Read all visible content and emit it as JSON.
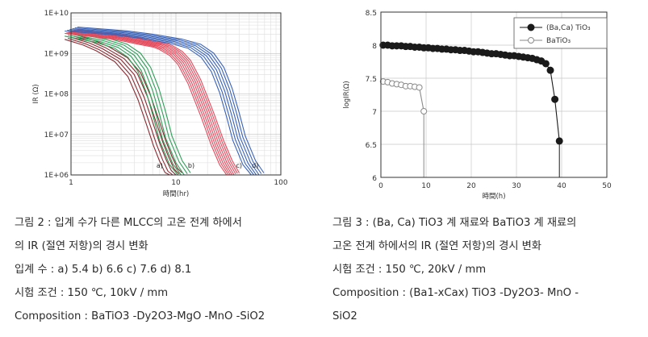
{
  "chart_data": [
    {
      "type": "line",
      "title": "",
      "xlabel": "時間(hr)",
      "ylabel": "IR (Ω)",
      "xscale": "log",
      "yscale": "log",
      "xlim": [
        1,
        100
      ],
      "ylim": [
        1000000,
        10000000000
      ],
      "xticks": [
        1,
        10,
        100
      ],
      "xtick_labels": [
        "1",
        "10",
        "100"
      ],
      "yticks": [
        1000000,
        10000000,
        100000000,
        1000000000,
        10000000000
      ],
      "ytick_labels": [
        "1E+06",
        "1E+07",
        "1E+08",
        "1E+09",
        "1E+10"
      ],
      "grid": true,
      "series_labels": [
        "a)",
        "b)",
        "c)",
        "d)"
      ],
      "series": [
        {
          "name": "a) 5.4",
          "color": "#8a2b32",
          "count": 5,
          "x": [
            1,
            1.5,
            2,
            3,
            4,
            5,
            6,
            7,
            8,
            9,
            10
          ],
          "y": [
            2500000000,
            1800000000,
            1300000000,
            700000000,
            300000000,
            80000000,
            20000000,
            6000000,
            2500000,
            1300000,
            1000000
          ]
        },
        {
          "name": "b) 6.6",
          "color": "#2e9e58",
          "count": 5,
          "x": [
            1,
            2,
            3,
            4,
            5,
            6,
            7,
            8,
            10,
            12
          ],
          "y": [
            3000000000,
            2100000000,
            1500000000,
            900000000,
            400000000,
            120000000,
            30000000,
            8000000,
            2000000,
            1000000
          ]
        },
        {
          "name": "c) 7.6",
          "color": "#e34a5c",
          "count": 8,
          "x": [
            1,
            3,
            5,
            7,
            8,
            10,
            12,
            15,
            20,
            25,
            30,
            35
          ],
          "y": [
            3500000000,
            2500000000,
            1900000000,
            1600000000,
            1400000000,
            1000000000,
            600000000,
            200000000,
            30000000,
            6000000,
            2000000,
            1000000
          ]
        },
        {
          "name": "d) 8.1",
          "color": "#3a63b8",
          "count": 6,
          "x": [
            1,
            3,
            5,
            10,
            15,
            20,
            25,
            30,
            35,
            40,
            50,
            60
          ],
          "y": [
            4000000000,
            3200000000,
            2700000000,
            2000000000,
            1500000000,
            900000000,
            400000000,
            120000000,
            30000000,
            8000000,
            2000000,
            1000000
          ]
        }
      ]
    },
    {
      "type": "line",
      "title": "",
      "xlabel": "時間(h)",
      "ylabel": "logIR(Ω)",
      "xlim": [
        0,
        50
      ],
      "ylim": [
        6,
        8.5
      ],
      "xticks": [
        0,
        10,
        20,
        30,
        40,
        50
      ],
      "yticks": [
        6,
        6.5,
        7,
        7.5,
        8,
        8.5
      ],
      "xtick_labels": [
        "0",
        "10",
        "20",
        "30",
        "40",
        "50"
      ],
      "ytick_labels": [
        "6",
        "6.5",
        "7",
        "7.5",
        "8",
        "8.5"
      ],
      "grid": true,
      "legend": "top-right",
      "series": [
        {
          "name": "(Ba,Ca) TiO₃",
          "marker": "filled-circle",
          "color": "#1a1a1a",
          "x": [
            0.5,
            1.5,
            2.5,
            3.5,
            4.5,
            5.5,
            6.5,
            7.5,
            8.5,
            9.5,
            10.5,
            11.5,
            12.5,
            13.5,
            14.5,
            15.5,
            16.5,
            17.5,
            18.5,
            19.5,
            20.5,
            21.5,
            22.5,
            23.5,
            24.5,
            25.5,
            26.5,
            27.5,
            28.5,
            29.5,
            30.5,
            31.5,
            32.5,
            33.5,
            34.5,
            35.5,
            36.5,
            37.5,
            38.5,
            39.5
          ],
          "y": [
            8.0,
            8.0,
            7.99,
            7.99,
            7.99,
            7.98,
            7.98,
            7.97,
            7.97,
            7.96,
            7.96,
            7.95,
            7.95,
            7.94,
            7.94,
            7.93,
            7.93,
            7.92,
            7.92,
            7.91,
            7.9,
            7.9,
            7.89,
            7.88,
            7.87,
            7.87,
            7.86,
            7.85,
            7.84,
            7.84,
            7.83,
            7.82,
            7.81,
            7.8,
            7.78,
            7.76,
            7.72,
            7.62,
            7.18,
            6.55
          ]
        },
        {
          "name": "BaTiO₃",
          "marker": "open-circle",
          "color": "#8a8a8a",
          "x": [
            0.5,
            1.5,
            2.5,
            3.5,
            4.5,
            5.5,
            6.5,
            7.5,
            8.5,
            9.5
          ],
          "y": [
            7.45,
            7.44,
            7.42,
            7.41,
            7.4,
            7.38,
            7.38,
            7.37,
            7.36,
            7.0
          ]
        }
      ]
    }
  ],
  "captions": {
    "left": [
      "그림 2 : 입계 수가 다른 MLCC의 고온 전계 하에서",
      "의 IR (절연 저항)의 경시 변화",
      "입계 수 : a) 5.4 b) 6.6 c) 7.6 d) 8.1",
      "시험 조건 : 150 ℃, 10kV / mm",
      "Composition : BaTiO3 -Dy2O3-MgO -MnO -SiO2"
    ],
    "right": [
      "그림 3 : (Ba, Ca) TiO3 계 재료와 BaTiO3 계 재료의",
      "고온 전계 하에서의 IR (절연 저항)의 경시 변화",
      "시험 조건 : 150 ℃, 20kV / mm",
      "Composition : (Ba1-xCax) TiO3 -Dy2O3- MnO -",
      "SiO2"
    ]
  }
}
